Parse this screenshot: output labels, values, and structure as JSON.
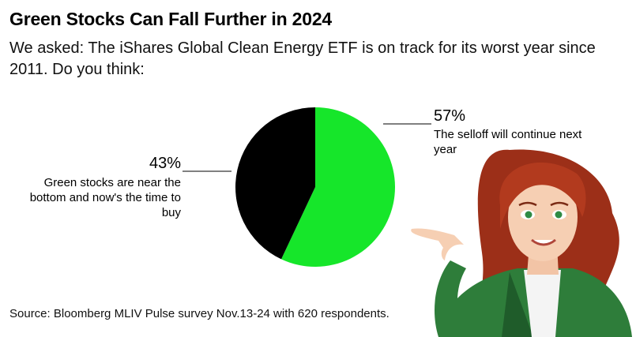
{
  "header": {
    "title": "Green Stocks Can Fall Further in 2024",
    "subtitle": "We asked: The iShares Global Clean Energy ETF is on track for its worst year since 2011. Do you think:"
  },
  "chart_data": {
    "type": "pie",
    "title": "Green Stocks Can Fall Further in 2024",
    "slices": [
      {
        "label_lines": [
          "The selloff will continue next",
          "year"
        ],
        "value": 57,
        "value_label": "57%",
        "color": "#16e62a"
      },
      {
        "label_lines": [
          "Green stocks are near the",
          "bottom and now's the time to",
          "buy"
        ],
        "value": 43,
        "value_label": "43%",
        "color": "#000000"
      }
    ]
  },
  "footer": {
    "source": "Source: Bloomberg MLIV Pulse survey Nov.13-24 with 620 respondents."
  },
  "illustration": {
    "description_icon": "woman-pointing-illustration",
    "hair_color": "#a8341c",
    "jacket_color": "#2e7d3a"
  }
}
